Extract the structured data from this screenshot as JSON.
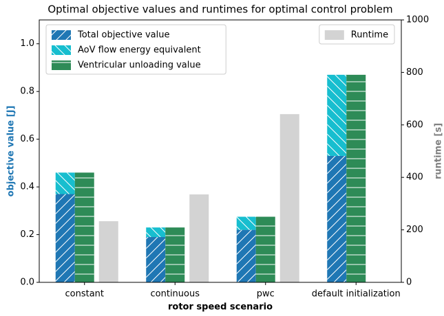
{
  "chart_data": {
    "type": "bar",
    "title": "Optimal objective values and runtimes for optimal control problem",
    "xlabel": "rotor speed scenario",
    "ylabel": "objective value [J]",
    "y2label": "runtime [s]",
    "categories": [
      "constant",
      "continuous",
      "pwc",
      "default initialization"
    ],
    "series": [
      {
        "name": "Total objective value",
        "color": "#1f77b4",
        "hatch": "/",
        "group": 0,
        "values": [
          0.37,
          0.19,
          0.22,
          0.53
        ]
      },
      {
        "name": "AoV flow energy equivalent",
        "color": "#17becf",
        "hatch": "\\",
        "group": 0,
        "values": [
          0.09,
          0.04,
          0.055,
          0.34
        ]
      },
      {
        "name": "Ventricular unloading value",
        "color": "#2e8b57",
        "hatch": "-",
        "group": 1,
        "values": [
          0.46,
          0.23,
          0.275,
          0.87
        ]
      },
      {
        "name": "Runtime",
        "color": "#d3d3d3",
        "group": 2,
        "axis": "y2",
        "values": [
          233,
          335,
          641,
          0
        ]
      }
    ],
    "ylim": [
      0,
      1.1
    ],
    "yticks": [
      {
        "value": 0,
        "label": "0.0"
      },
      0.2,
      0.4,
      0.6,
      0.8,
      {
        "value": 1,
        "label": "1.0"
      }
    ],
    "y2lim": [
      0,
      1000
    ],
    "y2ticks": [
      0,
      200,
      400,
      600,
      800,
      1000
    ],
    "ycolor": "#1f77b4",
    "y2color": "#808080",
    "legend": "upper left",
    "legend2": "upper right"
  }
}
